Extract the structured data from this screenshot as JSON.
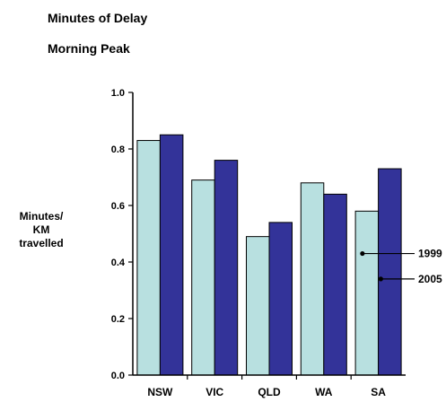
{
  "chart_data": {
    "type": "bar",
    "title": "Minutes of Delay",
    "subtitle": "Morning Peak",
    "ylabel": "Minutes/\nKM\ntravelled",
    "xlabel": "",
    "categories": [
      "NSW",
      "VIC",
      "QLD",
      "WA",
      "SA"
    ],
    "series": [
      {
        "name": "1999",
        "color": "#b8e0e0",
        "values": [
          0.83,
          0.69,
          0.49,
          0.68,
          0.58
        ]
      },
      {
        "name": "2005",
        "color": "#333399",
        "values": [
          0.85,
          0.76,
          0.54,
          0.64,
          0.73
        ]
      }
    ],
    "ylim": [
      0,
      1.0
    ],
    "yticks": [
      "0.0",
      "0.2",
      "0.4",
      "0.6",
      "0.8",
      "1.0"
    ],
    "grid": false,
    "legend": "annotated leader lines at right"
  }
}
